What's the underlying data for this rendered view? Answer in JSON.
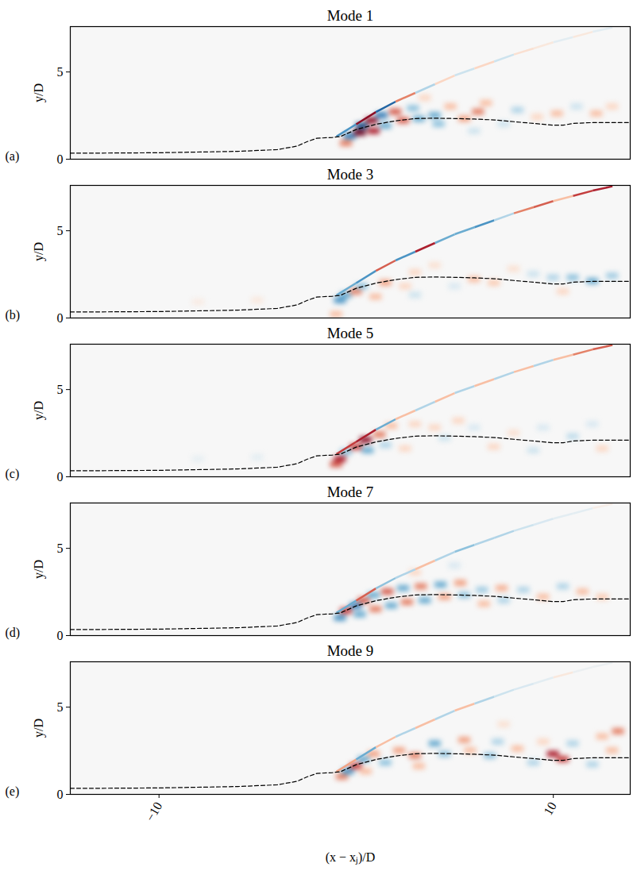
{
  "chart_data": {
    "type": "heatmap",
    "x_label": "(x − xⱼ)/D",
    "y_label": "y/D",
    "xlim": [
      -14.5,
      13.9
    ],
    "ylim": [
      0,
      7.6
    ],
    "xticks": [
      -10,
      10
    ],
    "yticks": [
      0,
      5
    ],
    "tick_labels": true,
    "color_domain": [
      -1,
      1
    ],
    "cell_size": [
      0.6,
      0.35
    ],
    "line": {
      "line_style": "dashed",
      "color": "#000000",
      "x": [
        -14.5,
        -13,
        -10,
        -6,
        -4,
        -3,
        -2.5,
        -2,
        -1.2,
        -0.8,
        0,
        1,
        2,
        3,
        4,
        5,
        6,
        7,
        8,
        9,
        10,
        10.5,
        11,
        12,
        13,
        13.9
      ],
      "y": [
        0.35,
        0.35,
        0.37,
        0.45,
        0.55,
        0.75,
        1.0,
        1.2,
        1.25,
        1.3,
        1.7,
        2.0,
        2.2,
        2.33,
        2.35,
        2.33,
        2.3,
        2.25,
        2.15,
        2.05,
        1.95,
        1.95,
        2.05,
        2.1,
        2.1,
        2.1
      ]
    },
    "panels": [
      {
        "title": "Mode 1",
        "letter": "(a)",
        "cells": [
          [
            -0.5,
            0.9,
            0.5
          ],
          [
            -0.3,
            1.3,
            -0.7
          ],
          [
            0.2,
            1.5,
            1.0
          ],
          [
            0.3,
            1.9,
            -0.9
          ],
          [
            0.8,
            2.2,
            0.9
          ],
          [
            0.9,
            1.6,
            0.8
          ],
          [
            1.3,
            2.5,
            -0.7
          ],
          [
            1.5,
            1.9,
            -0.5
          ],
          [
            2.0,
            2.7,
            0.6
          ],
          [
            2.4,
            2.2,
            0.6
          ],
          [
            2.9,
            2.9,
            -0.4
          ],
          [
            3.2,
            2.3,
            -0.5
          ],
          [
            4.0,
            2.5,
            -0.5
          ],
          [
            4.2,
            2.0,
            -0.4
          ],
          [
            4.8,
            3.0,
            0.3
          ],
          [
            5.5,
            2.3,
            0.4
          ],
          [
            6.2,
            2.7,
            0.5
          ],
          [
            6.6,
            3.2,
            0.3
          ],
          [
            7.5,
            2.0,
            -0.2
          ],
          [
            8.2,
            2.8,
            -0.3
          ],
          [
            9.2,
            2.4,
            0.2
          ],
          [
            10.2,
            2.6,
            0.3
          ],
          [
            11.2,
            3.0,
            -0.2
          ],
          [
            12.2,
            2.6,
            0.3
          ],
          [
            13.0,
            3.0,
            0.2
          ],
          [
            3.5,
            3.5,
            0.2
          ],
          [
            6.0,
            1.6,
            -0.2
          ]
        ],
        "shock": [
          [
            -1,
            1.3,
            -0.6
          ],
          [
            0,
            2.0,
            0.9
          ],
          [
            1,
            2.7,
            -0.8
          ],
          [
            2,
            3.3,
            0.5
          ],
          [
            3,
            3.8,
            -0.3
          ],
          [
            4,
            4.3,
            0.2
          ],
          [
            5,
            4.8,
            -0.2
          ],
          [
            6,
            5.2,
            0.2
          ],
          [
            7,
            5.6,
            -0.2
          ],
          [
            8,
            6.0,
            0.15
          ],
          [
            9,
            6.35,
            0.1
          ],
          [
            10,
            6.7,
            -0.1
          ],
          [
            11,
            7.0,
            0.1
          ],
          [
            12,
            7.3,
            -0.1
          ],
          [
            13,
            7.55,
            0.1
          ]
        ]
      },
      {
        "title": "Mode 3",
        "letter": "(b)",
        "cells": [
          [
            -0.8,
            1.0,
            -0.6
          ],
          [
            -0.5,
            1.3,
            -0.5
          ],
          [
            0,
            1.5,
            0.5
          ],
          [
            0.3,
            1.8,
            -0.4
          ],
          [
            1,
            1.2,
            0.3
          ],
          [
            1.5,
            2.0,
            0.4
          ],
          [
            2.5,
            1.8,
            0.2
          ],
          [
            3,
            2.6,
            0.2
          ],
          [
            4,
            3.0,
            0.15
          ],
          [
            6,
            2.2,
            0.3
          ],
          [
            7,
            2.0,
            0.25
          ],
          [
            8,
            2.8,
            0.15
          ],
          [
            9,
            2.5,
            -0.2
          ],
          [
            10,
            2.3,
            -0.3
          ],
          [
            11,
            2.3,
            -0.4
          ],
          [
            12,
            2.1,
            -0.5
          ],
          [
            13,
            2.4,
            -0.35
          ],
          [
            10.5,
            1.5,
            0.2
          ],
          [
            -1,
            0.2,
            0.3
          ],
          [
            -5,
            1.0,
            0.1
          ],
          [
            -8,
            0.9,
            0.08
          ],
          [
            5,
            1.8,
            -0.15
          ],
          [
            3,
            1.3,
            -0.2
          ]
        ],
        "shock": [
          [
            -1,
            1.3,
            -0.5
          ],
          [
            0,
            2.0,
            -0.6
          ],
          [
            1,
            2.7,
            0.6
          ],
          [
            2,
            3.3,
            -0.6
          ],
          [
            3,
            3.8,
            0.8
          ],
          [
            4,
            4.3,
            -0.5
          ],
          [
            5,
            4.8,
            -0.5
          ],
          [
            6,
            5.2,
            -0.6
          ],
          [
            7,
            5.6,
            -0.3
          ],
          [
            8,
            6.0,
            0.5
          ],
          [
            9,
            6.35,
            0.6
          ],
          [
            10,
            6.7,
            0.3
          ],
          [
            11,
            7.0,
            0.7
          ],
          [
            12,
            7.3,
            0.8
          ],
          [
            13,
            7.55,
            0.6
          ]
        ]
      },
      {
        "title": "Mode 5",
        "letter": "(c)",
        "cells": [
          [
            -1,
            0.7,
            0.6
          ],
          [
            -0.8,
            1.0,
            0.8
          ],
          [
            -0.5,
            1.4,
            -0.4
          ],
          [
            0,
            1.7,
            0.7
          ],
          [
            0.5,
            2.1,
            0.9
          ],
          [
            0.6,
            1.5,
            -0.5
          ],
          [
            1.2,
            2.4,
            0.5
          ],
          [
            1.8,
            2.9,
            0.3
          ],
          [
            1.5,
            1.8,
            -0.3
          ],
          [
            2.5,
            1.6,
            0.2
          ],
          [
            3,
            3.0,
            0.2
          ],
          [
            4,
            2.8,
            0.2
          ],
          [
            4.5,
            2.2,
            -0.2
          ],
          [
            5.2,
            3.2,
            0.2
          ],
          [
            6,
            2.8,
            -0.15
          ],
          [
            7,
            1.7,
            0.2
          ],
          [
            9,
            1.5,
            -0.2
          ],
          [
            9.5,
            2.8,
            -0.15
          ],
          [
            11,
            2.3,
            -0.25
          ],
          [
            12,
            3.0,
            -0.15
          ],
          [
            12.5,
            1.6,
            0.2
          ],
          [
            -5,
            1.1,
            -0.1
          ],
          [
            -8,
            1.0,
            -0.08
          ],
          [
            8,
            2.5,
            0.15
          ]
        ],
        "shock": [
          [
            -1,
            1.3,
            0.7
          ],
          [
            0,
            2.0,
            0.8
          ],
          [
            1,
            2.7,
            -0.5
          ],
          [
            2,
            3.3,
            0.3
          ],
          [
            3,
            3.8,
            -0.3
          ],
          [
            4,
            4.3,
            0.3
          ],
          [
            5,
            4.8,
            -0.3
          ],
          [
            6,
            5.2,
            0.3
          ],
          [
            7,
            5.6,
            -0.3
          ],
          [
            8,
            6.0,
            0.3
          ],
          [
            9,
            6.35,
            -0.3
          ],
          [
            10,
            6.7,
            0.3
          ],
          [
            11,
            7.0,
            0.5
          ],
          [
            12,
            7.3,
            0.6
          ],
          [
            13,
            7.55,
            0.5
          ]
        ]
      },
      {
        "title": "Mode 7",
        "letter": "(d)",
        "cells": [
          [
            -0.8,
            1.0,
            -0.6
          ],
          [
            -0.5,
            1.4,
            0.7
          ],
          [
            0,
            1.7,
            -0.7
          ],
          [
            0.4,
            2.0,
            0.6
          ],
          [
            0.2,
            1.2,
            -0.5
          ],
          [
            0.9,
            2.3,
            -0.5
          ],
          [
            1.0,
            1.5,
            0.5
          ],
          [
            1.6,
            2.5,
            0.6
          ],
          [
            1.8,
            1.7,
            -0.5
          ],
          [
            2.4,
            2.7,
            -0.5
          ],
          [
            2.6,
            1.9,
            0.5
          ],
          [
            3.3,
            2.8,
            0.5
          ],
          [
            3.5,
            2.0,
            -0.5
          ],
          [
            4.3,
            2.9,
            -0.5
          ],
          [
            4.5,
            2.2,
            0.4
          ],
          [
            5.3,
            3.0,
            0.4
          ],
          [
            5.5,
            2.3,
            -0.4
          ],
          [
            6.4,
            2.6,
            -0.35
          ],
          [
            6.5,
            1.8,
            0.3
          ],
          [
            7.4,
            2.7,
            0.35
          ],
          [
            7.5,
            2.0,
            -0.3
          ],
          [
            8.5,
            2.6,
            -0.3
          ],
          [
            9.5,
            2.2,
            0.3
          ],
          [
            10.5,
            2.8,
            -0.3
          ],
          [
            11.5,
            2.5,
            0.3
          ],
          [
            12.5,
            2.2,
            0.25
          ],
          [
            3,
            3.6,
            0.2
          ],
          [
            5,
            4.0,
            -0.15
          ]
        ],
        "shock": [
          [
            -1,
            1.3,
            -0.5
          ],
          [
            0,
            2.0,
            0.6
          ],
          [
            1,
            2.7,
            -0.4
          ],
          [
            2,
            3.3,
            -0.3
          ],
          [
            3,
            3.8,
            0.3
          ],
          [
            4,
            4.3,
            -0.3
          ],
          [
            5,
            4.8,
            -0.4
          ],
          [
            6,
            5.2,
            -0.3
          ],
          [
            7,
            5.6,
            -0.3
          ],
          [
            8,
            6.0,
            -0.2
          ],
          [
            9,
            6.35,
            -0.15
          ],
          [
            10,
            6.7,
            -0.1
          ],
          [
            11,
            7.0,
            -0.1
          ],
          [
            12,
            7.3,
            0.05
          ],
          [
            13,
            7.55,
            0.05
          ]
        ]
      },
      {
        "title": "Mode 9",
        "letter": "(e)",
        "cells": [
          [
            -0.7,
            1.0,
            0.5
          ],
          [
            -0.4,
            1.3,
            -0.6
          ],
          [
            0,
            1.6,
            0.7
          ],
          [
            0.4,
            2.0,
            -0.5
          ],
          [
            0.9,
            2.3,
            0.4
          ],
          [
            0.5,
            1.3,
            0.3
          ],
          [
            1.5,
            1.8,
            -0.4
          ],
          [
            2.2,
            2.5,
            0.4
          ],
          [
            3,
            2.2,
            0.5
          ],
          [
            3.2,
            1.6,
            0.3
          ],
          [
            4,
            2.9,
            -0.5
          ],
          [
            4.5,
            2.3,
            -0.4
          ],
          [
            5.5,
            3.1,
            0.4
          ],
          [
            5.8,
            2.5,
            0.3
          ],
          [
            6.8,
            2.2,
            -0.4
          ],
          [
            7.2,
            3.0,
            -0.3
          ],
          [
            8.2,
            2.6,
            0.3
          ],
          [
            9,
            1.8,
            -0.3
          ],
          [
            9.5,
            3.0,
            0.2
          ],
          [
            10,
            2.3,
            0.8
          ],
          [
            10.5,
            2.0,
            0.7
          ],
          [
            11,
            2.9,
            -0.3
          ],
          [
            12,
            1.7,
            -0.3
          ],
          [
            12.5,
            3.3,
            0.3
          ],
          [
            13.3,
            3.6,
            0.5
          ],
          [
            13,
            2.5,
            0.3
          ],
          [
            7.5,
            4.0,
            0.15
          ]
        ],
        "shock": [
          [
            -1,
            1.3,
            0.4
          ],
          [
            0,
            2.0,
            -0.5
          ],
          [
            1,
            2.7,
            0.3
          ],
          [
            2,
            3.3,
            -0.3
          ],
          [
            3,
            3.8,
            0.3
          ],
          [
            4,
            4.3,
            -0.3
          ],
          [
            5,
            4.8,
            0.3
          ],
          [
            6,
            5.2,
            -0.3
          ],
          [
            7,
            5.6,
            -0.2
          ],
          [
            8,
            6.0,
            -0.15
          ],
          [
            9,
            6.35,
            -0.1
          ],
          [
            10,
            6.7,
            0.1
          ],
          [
            11,
            7.0,
            -0.05
          ],
          [
            12,
            7.3,
            -0.05
          ],
          [
            13,
            7.55,
            0.05
          ]
        ]
      }
    ]
  }
}
